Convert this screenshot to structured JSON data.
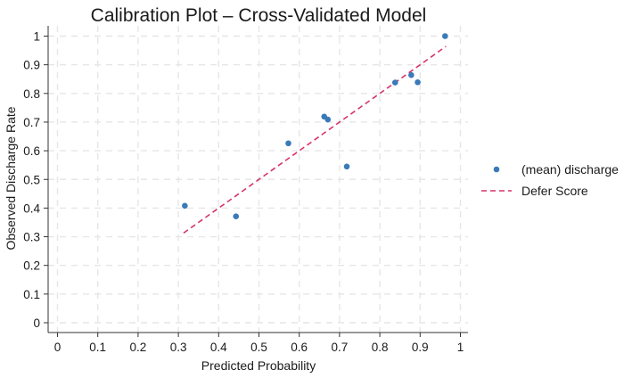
{
  "chart_data": {
    "type": "scatter",
    "title": "Calibration Plot – Cross-Validated Model",
    "xlabel": "Predicted Probability",
    "ylabel": "Observed Discharge Rate",
    "xlim": [
      0,
      1
    ],
    "ylim": [
      0,
      1
    ],
    "x_ticks": [
      0,
      0.1,
      0.2,
      0.3,
      0.4,
      0.5,
      0.6,
      0.7,
      0.8,
      0.9,
      1
    ],
    "x_tick_labels": [
      "0",
      "0.1",
      "0.2",
      "0.3",
      "0.4",
      "0.5",
      "0.6",
      "0.7",
      "0.8",
      "0.9",
      "1"
    ],
    "y_ticks": [
      0,
      0.1,
      0.2,
      0.3,
      0.4,
      0.5,
      0.6,
      0.7,
      0.8,
      0.9,
      1
    ],
    "y_tick_labels": [
      "0",
      "0.1",
      "0.2",
      "0.3",
      "0.4",
      "0.5",
      "0.6",
      "0.7",
      "0.8",
      "0.9",
      "1"
    ],
    "grid": true,
    "legend_position": "right",
    "series": [
      {
        "name": "(mean) discharge",
        "kind": "scatter",
        "color": "#3a7ab8",
        "points": [
          {
            "x": 0.316,
            "y": 0.408
          },
          {
            "x": 0.443,
            "y": 0.371
          },
          {
            "x": 0.573,
            "y": 0.626
          },
          {
            "x": 0.662,
            "y": 0.719
          },
          {
            "x": 0.671,
            "y": 0.709
          },
          {
            "x": 0.718,
            "y": 0.545
          },
          {
            "x": 0.838,
            "y": 0.838
          },
          {
            "x": 0.878,
            "y": 0.864
          },
          {
            "x": 0.894,
            "y": 0.839
          },
          {
            "x": 0.962,
            "y": 1.0
          }
        ]
      },
      {
        "name": "Defer Score",
        "kind": "line",
        "style": "dashed",
        "color": "#d6336c",
        "points": [
          {
            "x": 0.313,
            "y": 0.313
          },
          {
            "x": 0.964,
            "y": 0.964
          }
        ]
      }
    ]
  }
}
